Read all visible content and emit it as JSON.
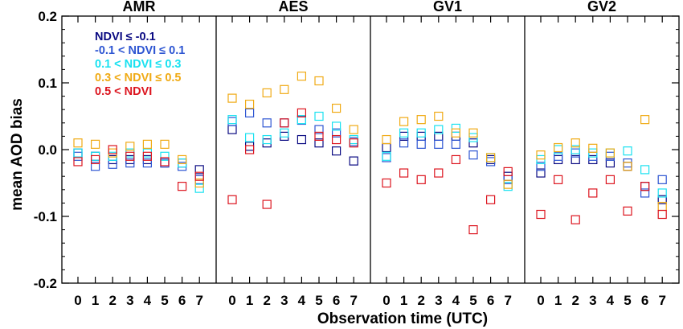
{
  "chart_data": {
    "type": "scatter",
    "ylabel": "mean AOD bias",
    "xlabel": "Observation time (UTC)",
    "ylim": [
      -0.2,
      0.2
    ],
    "yticks": [
      -0.2,
      -0.1,
      0.0,
      0.1,
      0.2
    ],
    "ytick_labels": [
      "-0.2",
      "-0.1",
      "0.0",
      "0.1",
      "0.2"
    ],
    "x": [
      0,
      1,
      2,
      3,
      4,
      5,
      6,
      7
    ],
    "xtick_labels": [
      "0",
      "1",
      "2",
      "3",
      "4",
      "5",
      "6",
      "7"
    ],
    "marker": "open-square",
    "legend_position": "top-left",
    "series": [
      {
        "name": "NDVI ≤ -0.1",
        "color": "#0a0a82"
      },
      {
        "name": "-0.1 < NDVI ≤ 0.1",
        "color": "#2d55d2"
      },
      {
        "name": "0.1 < NDVI ≤ 0.3",
        "color": "#19e1f0"
      },
      {
        "name": "0.3 < NDVI ≤ 0.5",
        "color": "#f0aa14"
      },
      {
        "name": "0.5 < NDVI",
        "color": "#dc141e"
      }
    ],
    "panels": [
      {
        "title": "AMR",
        "values": [
          [
            -0.005,
            -0.01,
            -0.015,
            -0.015,
            -0.015,
            -0.02,
            -0.02,
            -0.03
          ],
          [
            -0.01,
            -0.025,
            -0.022,
            -0.02,
            -0.02,
            -0.02,
            -0.025,
            -0.045
          ],
          [
            -0.005,
            -0.01,
            -0.01,
            -0.005,
            -0.005,
            -0.01,
            -0.02,
            -0.058
          ],
          [
            0.01,
            0.008,
            -0.005,
            0.005,
            0.008,
            0.008,
            -0.015,
            -0.05
          ],
          [
            -0.018,
            -0.015,
            0.0,
            -0.01,
            -0.01,
            -0.018,
            -0.055,
            -0.04
          ]
        ]
      },
      {
        "title": "AES",
        "values": [
          [
            0.03,
            0.005,
            0.01,
            0.02,
            0.015,
            0.01,
            -0.002,
            -0.017
          ],
          [
            0.042,
            0.055,
            0.04,
            0.04,
            0.044,
            0.03,
            0.025,
            0.012
          ],
          [
            0.045,
            0.018,
            0.015,
            0.025,
            0.045,
            0.05,
            0.035,
            0.015
          ],
          [
            0.077,
            0.068,
            0.085,
            0.09,
            0.11,
            0.103,
            0.062,
            0.03
          ],
          [
            -0.075,
            0.0,
            -0.082,
            0.04,
            0.055,
            0.02,
            0.015,
            0.01
          ]
        ]
      },
      {
        "title": "GV1",
        "values": [
          [
            0.003,
            0.02,
            0.02,
            0.02,
            0.02,
            0.01,
            -0.015,
            -0.04
          ],
          [
            -0.012,
            0.01,
            0.008,
            0.008,
            0.008,
            -0.008,
            -0.018,
            -0.045
          ],
          [
            -0.01,
            0.025,
            0.025,
            0.03,
            0.032,
            0.018,
            -0.012,
            -0.055
          ],
          [
            0.015,
            0.042,
            0.045,
            0.05,
            0.025,
            0.025,
            -0.012,
            -0.052
          ],
          [
            -0.05,
            -0.035,
            -0.045,
            -0.035,
            -0.015,
            -0.12,
            -0.075,
            -0.033
          ]
        ]
      },
      {
        "title": "GV2",
        "values": [
          [
            -0.035,
            -0.015,
            -0.015,
            -0.015,
            -0.02,
            -0.025,
            -0.055,
            -0.075
          ],
          [
            -0.025,
            -0.01,
            -0.005,
            -0.01,
            -0.01,
            -0.02,
            -0.065,
            -0.045
          ],
          [
            -0.015,
            0.0,
            0.0,
            -0.005,
            -0.005,
            -0.002,
            -0.03,
            -0.065
          ],
          [
            -0.008,
            0.003,
            0.01,
            0.002,
            -0.005,
            -0.025,
            0.045,
            -0.085
          ],
          [
            -0.097,
            -0.045,
            -0.105,
            -0.065,
            -0.045,
            -0.092,
            -0.055,
            -0.097
          ]
        ]
      }
    ]
  }
}
